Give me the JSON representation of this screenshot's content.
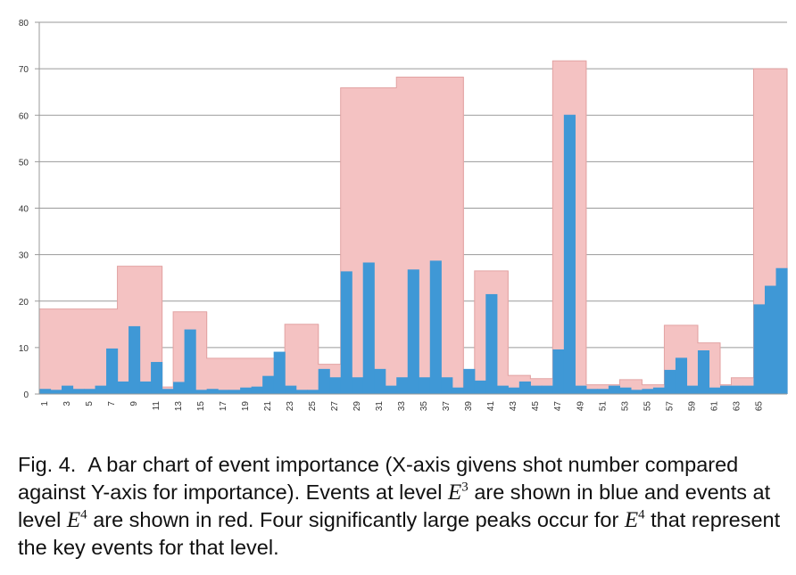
{
  "chart_data": {
    "type": "bar",
    "x": [
      1,
      2,
      3,
      4,
      5,
      6,
      7,
      8,
      9,
      10,
      11,
      12,
      13,
      14,
      15,
      16,
      17,
      18,
      19,
      20,
      21,
      22,
      23,
      24,
      25,
      26,
      27,
      28,
      29,
      30,
      31,
      32,
      33,
      34,
      35,
      36,
      37,
      38,
      39,
      40,
      41,
      42,
      43,
      44,
      45,
      46,
      47,
      48,
      49,
      50,
      51,
      52,
      53,
      54,
      55,
      56,
      57,
      58,
      59,
      60,
      61,
      62,
      63,
      64,
      65,
      66,
      67
    ],
    "x_tick_labels": [
      "1",
      "3",
      "5",
      "7",
      "9",
      "11",
      "13",
      "15",
      "17",
      "19",
      "21",
      "23",
      "25",
      "27",
      "29",
      "31",
      "33",
      "35",
      "37",
      "39",
      "41",
      "43",
      "45",
      "47",
      "49",
      "51",
      "53",
      "55",
      "57",
      "59",
      "61",
      "63",
      "65"
    ],
    "ylim": [
      0,
      80
    ],
    "y_ticks": [
      0,
      10,
      20,
      30,
      40,
      50,
      60,
      70,
      80
    ],
    "grid": true,
    "series": [
      {
        "level": "E4",
        "color": "#f4c2c2",
        "values": [
          18.3,
          18.3,
          18.3,
          18.3,
          18.3,
          18.3,
          18.3,
          27.5,
          27.5,
          27.5,
          27.5,
          1.5,
          17.7,
          17.7,
          17.7,
          7.7,
          7.7,
          7.7,
          7.7,
          7.7,
          7.7,
          7.7,
          15,
          15,
          15,
          6.4,
          6.4,
          65.9,
          65.9,
          65.9,
          65.9,
          65.9,
          68.2,
          68.2,
          68.2,
          68.2,
          68.2,
          68.2,
          1.5,
          26.5,
          26.5,
          26.5,
          4,
          4,
          3.3,
          3.3,
          71.7,
          71.7,
          71.7,
          2,
          2,
          2,
          3.1,
          3.1,
          2,
          2,
          14.8,
          14.8,
          14.8,
          11,
          11,
          2,
          3.5,
          3.5,
          70,
          70,
          70
        ]
      },
      {
        "level": "E3",
        "color": "#3f98d6",
        "values": [
          1.1,
          0.9,
          1.8,
          1.1,
          1.1,
          1.8,
          9.8,
          2.7,
          14.6,
          2.7,
          6.9,
          1.1,
          2.6,
          13.9,
          0.9,
          1.1,
          0.9,
          0.9,
          1.4,
          1.6,
          3.9,
          9.1,
          1.8,
          0.9,
          0.9,
          5.4,
          3.6,
          26.4,
          3.6,
          28.3,
          5.4,
          1.8,
          3.6,
          26.8,
          3.6,
          28.7,
          3.6,
          1.4,
          5.4,
          2.9,
          21.5,
          1.8,
          1.4,
          2.7,
          1.8,
          1.8,
          9.6,
          60.1,
          1.8,
          1.1,
          1.1,
          1.8,
          1.4,
          0.9,
          1.1,
          1.4,
          5.2,
          7.8,
          1.8,
          9.4,
          1.4,
          1.8,
          1.8,
          1.8,
          19.3,
          23.3,
          27.1
        ]
      }
    ]
  },
  "caption": {
    "fig_label": "Fig. 4.",
    "text_1": "A bar chart of event importance (X-axis givens shot number compared against Y-axis for importance). Events at level",
    "sym_e3": "E",
    "sup_e3": "3",
    "text_2": "are shown in blue and events at level",
    "sym_e4": "E",
    "sup_e4": "4",
    "text_3": "are shown in red. Four significantly large peaks occur for",
    "sym_e4b": "E",
    "sup_e4b": "4",
    "text_4": "that represent the key events for that level."
  }
}
